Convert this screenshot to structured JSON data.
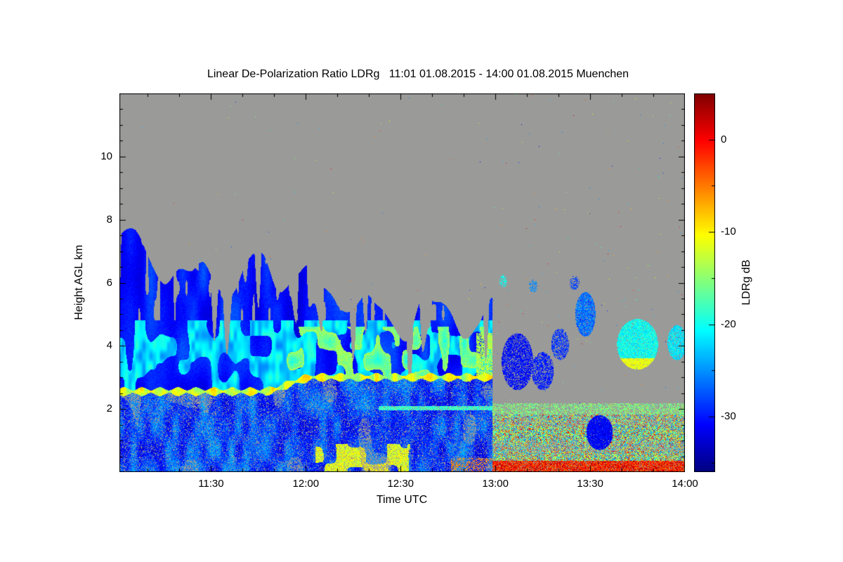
{
  "chart_data": {
    "type": "heatmap",
    "title": "Linear De-Polarization Ratio LDRg   11:01 01.08.2015 - 14:00 01.08.2015 Muenchen",
    "xlabel": "Time UTC",
    "ylabel": "Height AGL km",
    "station": "Muenchen",
    "time_start": "11:01 01.08.2015",
    "time_end": "14:00 01.08.2015",
    "x_range_minutes": [
      0,
      179
    ],
    "ylim_km": [
      0,
      12
    ],
    "x_ticks": [
      {
        "label": "11:30",
        "minute": 29
      },
      {
        "label": "12:00",
        "minute": 59
      },
      {
        "label": "12:30",
        "minute": 89
      },
      {
        "label": "13:00",
        "minute": 119
      },
      {
        "label": "13:30",
        "minute": 149
      },
      {
        "label": "14:00",
        "minute": 179
      }
    ],
    "x_minor_minutes": [
      9,
      19,
      39,
      49,
      69,
      79,
      99,
      109,
      129,
      139,
      159,
      169
    ],
    "y_ticks": [
      {
        "label": "2",
        "km": 2
      },
      {
        "label": "4",
        "km": 4
      },
      {
        "label": "6",
        "km": 6
      },
      {
        "label": "8",
        "km": 8
      },
      {
        "label": "10",
        "km": 10
      }
    ],
    "colorbar": {
      "label": "LDRg dB",
      "vmin": -36,
      "vmax": 5,
      "ticks": [
        {
          "label": "0",
          "db": 0
        },
        {
          "label": "-10",
          "db": -10
        },
        {
          "label": "-20",
          "db": -20
        },
        {
          "label": "-30",
          "db": -30
        }
      ],
      "minor_ticks_db": [
        -5,
        -15,
        -25,
        -35
      ],
      "palette": "jet",
      "top_color": "#800000",
      "bottom_color": "#000080"
    },
    "no_data_color": "#9a9a98",
    "regions": [
      {
        "name": "no_data_background",
        "time": "11:01-14:00",
        "height_km": [
          0,
          12
        ],
        "ldr_db": null,
        "note": "gray = no signal"
      },
      {
        "name": "cloud_deck",
        "time": "11:01-13:00",
        "height_km": [
          2.3,
          7.0
        ],
        "ldr_db": [
          -33,
          -25
        ],
        "note": "deep blue cloud, top descends from ~7.0 km to ~4.6 km with ragged fingers"
      },
      {
        "name": "bright_band",
        "time": "11:01-13:00",
        "height_km": [
          2.45,
          3.1
        ],
        "ldr_db": [
          -16,
          -8
        ],
        "note": "thin cyan/green/yellow high-LDR layer, rises from 2.55 km to 3.0 km around 12:00"
      },
      {
        "name": "embedded_mixed_layer",
        "time": "11:55-13:00",
        "height_km": [
          2.9,
          4.6
        ],
        "ldr_db": [
          -22,
          -12
        ],
        "note": "cyan/green wisps with yellow cores inside cloud"
      },
      {
        "name": "boundary_layer_speckle",
        "time": "11:01-13:00",
        "height_km": [
          0,
          2.4
        ],
        "ldr_db": [
          -32,
          -18
        ],
        "note": "noisy blue with gray gaps"
      },
      {
        "name": "surface_yellow_patches",
        "time": "12:03-12:33",
        "height_km": [
          0,
          0.9
        ],
        "ldr_db": [
          -15,
          -8
        ]
      },
      {
        "name": "surface_bright_line",
        "time": "12:45-14:00",
        "height_km": [
          0,
          0.35
        ],
        "ldr_db": [
          -8,
          2
        ],
        "note": "yellow/orange/red near-ground band"
      },
      {
        "name": "post_1300_bands",
        "time": "13:00-14:00",
        "height_km": [
          0,
          2.1
        ],
        "ldr_db": [
          -27,
          0
        ],
        "note": "speckled yellow/green/orange rows mixed with gray and blue"
      },
      {
        "name": "cyan_band_2km",
        "time": "12:25-14:00",
        "height_km": [
          1.85,
          2.15
        ],
        "ldr_db": [
          -22,
          -14
        ]
      },
      {
        "name": "scattered_blue_patches",
        "time": "13:05-13:22",
        "height_km": [
          2.6,
          4.6
        ],
        "ldr_db": [
          -32,
          -26
        ]
      },
      {
        "name": "tilted_blue_streak",
        "time": "13:24-13:33",
        "height_km": [
          4.3,
          5.7
        ],
        "ldr_db": [
          -29,
          -22
        ]
      },
      {
        "name": "bright_cyan_patch",
        "time": "13:37-13:55",
        "height_km": [
          3.2,
          4.9
        ],
        "ldr_db": [
          -23,
          -15
        ],
        "note": "yellow dots along its base"
      },
      {
        "name": "low_blue_blob",
        "time": "13:28-13:37",
        "height_km": [
          0.7,
          1.8
        ],
        "ldr_db": [
          -33,
          -29
        ]
      }
    ],
    "render_params": {
      "transition_min": 118,
      "cloud_top": {
        "base": 7.0,
        "slope": 0.0205,
        "a1": 0.5,
        "f1": 0.33,
        "a2": 0.35,
        "f2": 0.11,
        "a3": 1.1
      },
      "bright_band": {
        "h_early": 2.55,
        "h_late": 3.0,
        "t0": 45,
        "t1": 62,
        "half_thick": 0.09,
        "db": -12,
        "spread": 8
      },
      "surface_yellow": {
        "t0": 62,
        "t1": 92
      },
      "blobs": [
        {
          "t": 126,
          "h": 3.5,
          "rt": 5,
          "rh": 0.9,
          "db": -30,
          "spread": 5,
          "fill": 0.75
        },
        {
          "t": 134,
          "h": 3.2,
          "rt": 3.5,
          "rh": 0.6,
          "db": -29,
          "spread": 5,
          "fill": 0.7
        },
        {
          "t": 139.5,
          "h": 4.05,
          "rt": 2.8,
          "rh": 0.5,
          "db": -28,
          "spread": 5,
          "fill": 0.65
        },
        {
          "t": 147.5,
          "h": 5.0,
          "rt": 3.2,
          "rh": 0.7,
          "db": -26,
          "spread": 7,
          "fill": 0.85
        },
        {
          "t": 144,
          "h": 6.0,
          "rt": 1.6,
          "rh": 0.22,
          "db": -27,
          "spread": 5,
          "fill": 0.5
        },
        {
          "t": 121.5,
          "h": 6.05,
          "rt": 1.2,
          "rh": 0.2,
          "db": -19,
          "spread": 5,
          "fill": 0.5
        },
        {
          "t": 131,
          "h": 5.9,
          "rt": 1.4,
          "rh": 0.2,
          "db": -24,
          "spread": 5,
          "fill": 0.5
        },
        {
          "t": 164,
          "h": 4.05,
          "rt": 6.5,
          "rh": 0.8,
          "db": -20,
          "spread": 6,
          "fill": 0.95,
          "yellow_base": true
        },
        {
          "t": 176.5,
          "h": 4.1,
          "rt": 3,
          "rh": 0.55,
          "db": -21,
          "spread": 6,
          "fill": 0.85
        },
        {
          "t": 152,
          "h": 1.25,
          "rt": 4.2,
          "rh": 0.55,
          "db": -31,
          "spread": 4,
          "fill": 0.97
        }
      ]
    }
  }
}
